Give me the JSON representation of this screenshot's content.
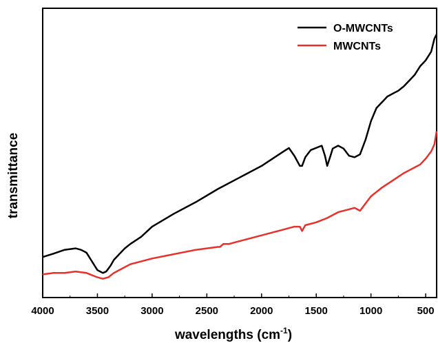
{
  "chart_data": {
    "type": "line",
    "title": "",
    "xlabel": "wavelengths (cm",
    "xlabel_sup": "-1",
    "xlabel_end": ")",
    "ylabel": "transmittance",
    "xlim": [
      4000,
      400
    ],
    "x_reversed": true,
    "ylim": [
      0,
      100
    ],
    "y_ticks_shown": false,
    "grid": false,
    "legend_position": "top-right",
    "x_ticks": [
      {
        "value": 4000,
        "label": "4000"
      },
      {
        "value": 3500,
        "label": "3500"
      },
      {
        "value": 3000,
        "label": "3000"
      },
      {
        "value": 2500,
        "label": "2500"
      },
      {
        "value": 2000,
        "label": "2000"
      },
      {
        "value": 1500,
        "label": "1500"
      },
      {
        "value": 1000,
        "label": "1000"
      },
      {
        "value": 500,
        "label": "500"
      }
    ],
    "series": [
      {
        "name": "O-MWCNTs",
        "color": "#000000",
        "x": [
          4000,
          3900,
          3800,
          3700,
          3650,
          3600,
          3550,
          3500,
          3450,
          3420,
          3380,
          3350,
          3300,
          3250,
          3200,
          3100,
          3000,
          2800,
          2600,
          2400,
          2200,
          2000,
          1900,
          1800,
          1750,
          1700,
          1650,
          1630,
          1600,
          1550,
          1450,
          1420,
          1400,
          1370,
          1350,
          1300,
          1250,
          1200,
          1150,
          1100,
          1050,
          1000,
          950,
          900,
          850,
          800,
          750,
          700,
          650,
          600,
          550,
          500,
          450,
          420,
          400
        ],
        "y": [
          14,
          15.2,
          16.5,
          17,
          16.5,
          15.5,
          12.5,
          9.5,
          8.5,
          9,
          11,
          13,
          15,
          17,
          18.5,
          21,
          24.5,
          29,
          33,
          37.5,
          41.5,
          45.5,
          48,
          50.5,
          51.7,
          49,
          45.5,
          45.5,
          48.5,
          51,
          52.5,
          49,
          45.5,
          49,
          51.5,
          52.5,
          51.5,
          49,
          48.5,
          49.5,
          54.5,
          61,
          65.5,
          67.5,
          69.5,
          70.5,
          71.5,
          73,
          75,
          77,
          80,
          82,
          85,
          89.5,
          91
        ]
      },
      {
        "name": "MWCNTs",
        "color": "#e8302a",
        "x": [
          4000,
          3900,
          3800,
          3700,
          3600,
          3500,
          3450,
          3400,
          3350,
          3300,
          3200,
          3000,
          2800,
          2600,
          2400,
          2380,
          2350,
          2300,
          2200,
          2000,
          1800,
          1700,
          1650,
          1630,
          1600,
          1500,
          1400,
          1300,
          1200,
          1150,
          1100,
          1050,
          1000,
          900,
          800,
          700,
          650,
          600,
          550,
          500,
          450,
          420,
          400
        ],
        "y": [
          8,
          8.5,
          8.5,
          9,
          8.5,
          7,
          6.5,
          7,
          8.5,
          9.5,
          11.5,
          13.5,
          15,
          16.5,
          17.5,
          17.5,
          18.5,
          18.5,
          19.5,
          21.5,
          23.5,
          24.5,
          24.5,
          23,
          25,
          26,
          27.5,
          29.5,
          30.5,
          31,
          30,
          32.5,
          35,
          38,
          40.5,
          43,
          44,
          45,
          46,
          48,
          50.5,
          53,
          57.5
        ]
      }
    ]
  }
}
